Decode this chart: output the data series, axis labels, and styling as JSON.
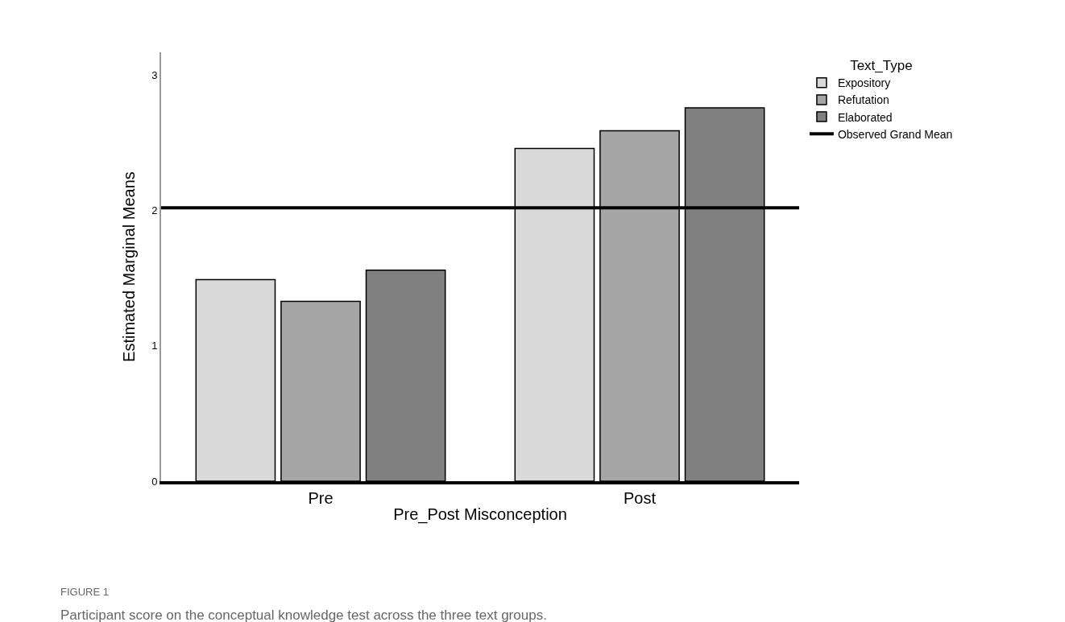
{
  "chart_data": {
    "type": "bar",
    "xlabel": "Pre_Post Misconception",
    "ylabel": "Estimated Marginal Means",
    "legend_title": "Text_Type",
    "categories": [
      "Pre",
      "Post"
    ],
    "series": [
      {
        "name": "Expository",
        "color": "#d9d9d9",
        "values": [
          1.49,
          2.46
        ]
      },
      {
        "name": "Refutation",
        "color": "#a6a6a6",
        "values": [
          1.33,
          2.59
        ]
      },
      {
        "name": "Elaborated",
        "color": "#808080",
        "values": [
          1.56,
          2.76
        ]
      }
    ],
    "ylim": [
      0,
      3.17
    ],
    "yticks": [
      0,
      1,
      2,
      3
    ],
    "legend": "top right",
    "ref_lines": [
      {
        "axis": "y",
        "value": 2.02,
        "label": "Observed Grand Mean",
        "color": "#000000",
        "line_style": "solid"
      }
    ],
    "annotations": [
      "FIGURE 1",
      "Participant score on the conceptual knowledge test across the three text groups."
    ]
  }
}
